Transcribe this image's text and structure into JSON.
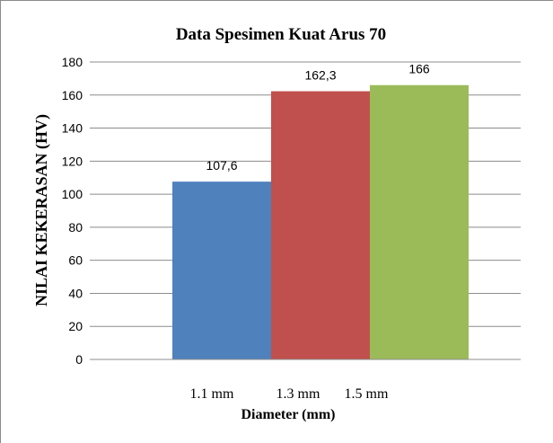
{
  "chart_data": {
    "type": "bar",
    "title": "Data Spesimen Kuat Arus 70",
    "xlabel": "Diameter (mm)",
    "ylabel": "NILAI KEKERASAN (HV)",
    "categories": [
      "1.1 mm",
      "1.3 mm",
      "1.5 mm"
    ],
    "values": [
      107.6,
      162.3,
      166
    ],
    "data_labels": [
      "107,6",
      "162,3",
      "166"
    ],
    "colors": [
      "#4f81bd",
      "#c0504d",
      "#9bbb59"
    ],
    "ylim": [
      0,
      180
    ],
    "yticks": [
      "0",
      "20",
      "40",
      "60",
      "80",
      "100",
      "120",
      "140",
      "160",
      "180"
    ],
    "grid": true
  }
}
